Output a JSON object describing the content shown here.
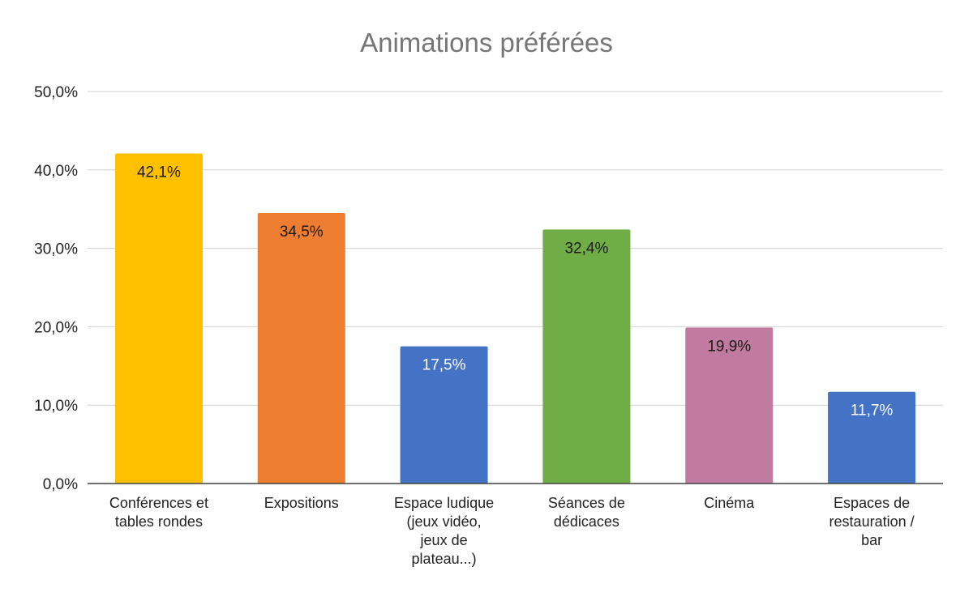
{
  "chart_data": {
    "type": "bar",
    "title": "Animations préférées",
    "xlabel": "",
    "ylabel": "",
    "ylim": [
      0,
      50
    ],
    "yticks": [
      0,
      10,
      20,
      30,
      40,
      50
    ],
    "ytick_labels": [
      "0,0%",
      "10,0%",
      "20,0%",
      "30,0%",
      "40,0%",
      "50,0%"
    ],
    "grid": true,
    "legend": "none",
    "categories": [
      [
        "Conférences et",
        "tables rondes"
      ],
      [
        "Expositions"
      ],
      [
        "Espace ludique",
        "(jeux vidéo,",
        "jeux de",
        "plateau...)"
      ],
      [
        "Séances de",
        "dédicaces"
      ],
      [
        "Cinéma"
      ],
      [
        "Espaces de",
        "restauration /",
        "bar"
      ]
    ],
    "values": [
      42.1,
      34.5,
      17.5,
      32.4,
      19.9,
      11.7
    ],
    "value_labels": [
      "42,1%",
      "34,5%",
      "17,5%",
      "32,4%",
      "19,9%",
      "11,7%"
    ],
    "colors": [
      "#FFC000",
      "#ED7D31",
      "#4472C4",
      "#70AD47",
      "#C27BA0",
      "#4472C4"
    ],
    "label_colors": [
      "#1a1a1a",
      "#1a1a1a",
      "#ffffff",
      "#1a1a1a",
      "#1a1a1a",
      "#ffffff"
    ],
    "grid_color": "#d0d0d0",
    "axis_color": "#404040"
  }
}
